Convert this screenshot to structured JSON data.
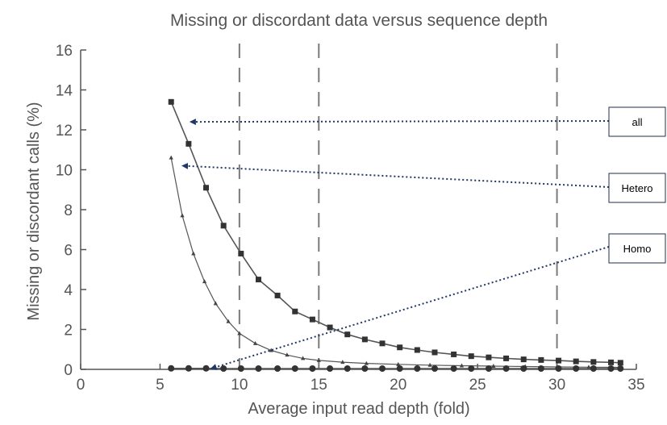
{
  "chart_data": {
    "type": "line",
    "title": "Missing or discordant data versus sequence depth",
    "xlabel": "Average input read depth (fold)",
    "ylabel": "Missing or discordant calls (%)",
    "xlim": [
      0,
      35
    ],
    "ylim": [
      0,
      16
    ],
    "xticks": [
      "0",
      "5",
      "10",
      "15",
      "20",
      "25",
      "30",
      "35"
    ],
    "yticks": [
      "0",
      "2",
      "4",
      "6",
      "8",
      "10",
      "12",
      "14",
      "16"
    ],
    "grid": false,
    "vertical_dashed_lines": [
      10,
      15,
      30
    ],
    "series": [
      {
        "name": "all",
        "marker": "square",
        "x": [
          5.7,
          6.8,
          7.9,
          9.0,
          10.1,
          11.2,
          12.4,
          13.5,
          14.6,
          15.7,
          16.8,
          17.9,
          19.0,
          20.1,
          21.2,
          22.3,
          23.5,
          24.6,
          25.7,
          26.8,
          27.9,
          29.0,
          30.1,
          31.2,
          32.3,
          33.4,
          34.0
        ],
        "y": [
          13.4,
          11.3,
          9.1,
          7.2,
          5.8,
          4.5,
          3.7,
          2.9,
          2.5,
          2.1,
          1.75,
          1.5,
          1.3,
          1.1,
          0.97,
          0.85,
          0.75,
          0.66,
          0.6,
          0.55,
          0.5,
          0.47,
          0.44,
          0.4,
          0.37,
          0.35,
          0.33
        ]
      },
      {
        "name": "Hetero",
        "marker": "triangle",
        "x": [
          5.7,
          6.4,
          7.1,
          7.8,
          8.5,
          9.3,
          10.0,
          11.0,
          12.0,
          13.0,
          14.0,
          15.0,
          16.5,
          18.0,
          20.0,
          22.0,
          24.0,
          26.0,
          28.0,
          30.0,
          32.0,
          34.0
        ],
        "y": [
          10.6,
          7.7,
          5.8,
          4.4,
          3.3,
          2.4,
          1.8,
          1.3,
          0.95,
          0.72,
          0.55,
          0.45,
          0.36,
          0.3,
          0.25,
          0.21,
          0.18,
          0.16,
          0.14,
          0.12,
          0.11,
          0.1
        ]
      },
      {
        "name": "Homo",
        "marker": "circle",
        "x": [
          5.7,
          6.8,
          7.9,
          9.0,
          10.1,
          11.2,
          12.4,
          13.5,
          14.6,
          15.7,
          16.8,
          17.9,
          19.0,
          20.1,
          21.2,
          22.3,
          23.5,
          24.6,
          25.7,
          26.8,
          27.9,
          29.0,
          30.1,
          31.2,
          32.3,
          33.4,
          34.0
        ],
        "y": [
          0.05,
          0.05,
          0.05,
          0.04,
          0.04,
          0.04,
          0.04,
          0.04,
          0.04,
          0.04,
          0.04,
          0.04,
          0.04,
          0.04,
          0.04,
          0.04,
          0.04,
          0.04,
          0.04,
          0.04,
          0.04,
          0.04,
          0.04,
          0.04,
          0.04,
          0.04,
          0.04
        ]
      }
    ],
    "annotations": [
      {
        "text": "all",
        "points_to": {
          "x": 6.7,
          "y": 12.4
        }
      },
      {
        "text": "Hetero",
        "points_to": {
          "x": 6.2,
          "y": 10.2
        }
      },
      {
        "text": "Homo",
        "points_to": {
          "x": 8.0,
          "y": 0.05
        }
      }
    ]
  },
  "colors": {
    "line": "#555555",
    "axis": "#555555",
    "dashed_line": "#7a7a7a",
    "callout_border": "#1f2f4a",
    "arrow": "#1f3864"
  }
}
